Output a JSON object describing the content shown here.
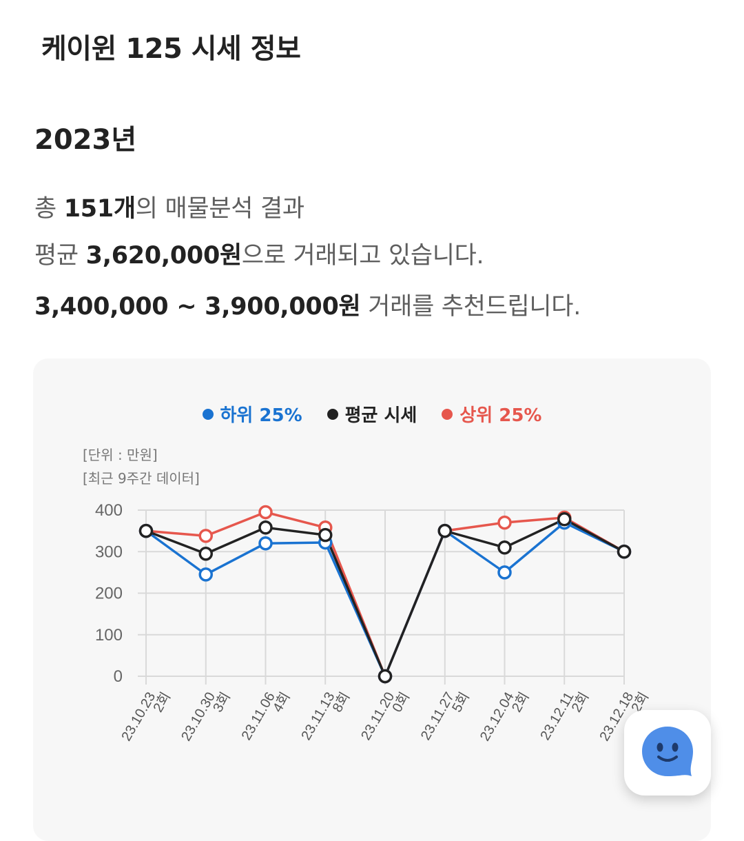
{
  "page": {
    "title": "케이윈 125 시세 정보",
    "year": "2023년"
  },
  "summary": {
    "l1_a": "총 ",
    "l1_count": "151개",
    "l1_b": "의 매물분석 결과",
    "l2_a": "평균 ",
    "l2_avg": "3,620,000원",
    "l2_b": "으로 거래되고 있습니다.",
    "l3_range": "3,400,000 ~ 3,900,000원",
    "l3_b": " 거래를 추천드립니다."
  },
  "chart_data": {
    "type": "line",
    "legend": [
      "하위 25%",
      "평균 시세",
      "상위 25%"
    ],
    "unit_note": "[단위 : 만원]",
    "period_note": "[최근 9주간 데이터]",
    "categories": [
      "23.10.23",
      "23.10.30",
      "23.11.06",
      "23.11.13",
      "23.11.20",
      "23.11.27",
      "23.12.04",
      "23.12.11",
      "23.12.18"
    ],
    "counts": [
      "2회",
      "3회",
      "4회",
      "8회",
      "0회",
      "5회",
      "2회",
      "2회",
      "2회"
    ],
    "ylim": [
      0,
      400
    ],
    "yticks": [
      0,
      100,
      200,
      300,
      400
    ],
    "series": [
      {
        "name": "하위 25%",
        "color": "#1a73d1",
        "values": [
          350,
          245,
          320,
          322,
          0,
          350,
          250,
          370,
          300
        ]
      },
      {
        "name": "평균 시세",
        "color": "#222222",
        "values": [
          350,
          295,
          358,
          340,
          0,
          350,
          310,
          378,
          300
        ]
      },
      {
        "name": "상위 25%",
        "color": "#e6574d",
        "values": [
          350,
          338,
          395,
          358,
          0,
          350,
          370,
          382,
          300
        ]
      }
    ]
  },
  "fab": {
    "icon": "chatbot-face-icon"
  }
}
